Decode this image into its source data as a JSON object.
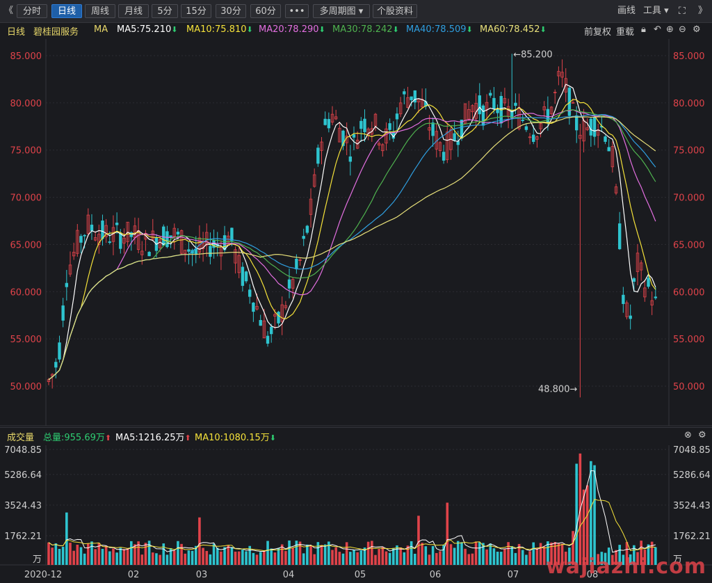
{
  "toolbar": {
    "nav_prev": "《",
    "nav_next": "》",
    "buttons": [
      "分时",
      "日线",
      "周线",
      "月线",
      "5分",
      "15分",
      "30分",
      "60分",
      "•••",
      "多周期图 ▾",
      "个股资料"
    ],
    "active_index": 1,
    "draw_label": "画线",
    "tools_label": "工具 ▾"
  },
  "info": {
    "period": "日线",
    "stock_name": "碧桂园服务",
    "ma_label": "MA",
    "ma5": "MA5:75.210",
    "ma10": "MA10:75.810",
    "ma20": "MA20:78.290",
    "ma30": "MA30:78.242",
    "ma40": "MA40:78.509",
    "ma60": "MA60:78.452",
    "fq": "前复权",
    "overlay": "重载"
  },
  "volume_info": {
    "title": "成交量",
    "total": "总量:955.69万",
    "ma5": "MA5:1216.25万",
    "ma10": "MA10:1080.15万"
  },
  "colors": {
    "up": "#e0434a",
    "down": "#2ec4cf",
    "ma5": "#ffffff",
    "ma10": "#f5e23a",
    "ma20": "#e36fe0",
    "ma30": "#4fb24f",
    "ma40": "#2f9fe0",
    "ma60": "#e8e07a",
    "price_axis": "#e0434a"
  },
  "chart_data": {
    "type": "candlestick",
    "price_ticks": [
      "85.000",
      "80.000",
      "75.000",
      "70.000",
      "65.000",
      "60.000",
      "55.000",
      "50.000"
    ],
    "volume_ticks": [
      "7048.85",
      "5286.64",
      "3524.43",
      "1762.21",
      "万"
    ],
    "x_labels": [
      "2020-12",
      "02",
      "03",
      "04",
      "05",
      "06",
      "07",
      "08"
    ],
    "high_label": "←85.200",
    "low_label": "48.800→",
    "price_high": 85.2,
    "price_low": 48.8,
    "ma_values_latest": {
      "MA5": 75.21,
      "MA10": 75.81,
      "MA20": 78.29,
      "MA30": 78.242,
      "MA40": 78.509,
      "MA60": 78.452
    },
    "volume_total": "955.69万",
    "volume_ma5": "1216.25万",
    "volume_ma10": "1080.15万"
  },
  "watermark": "wajiazhi.com"
}
